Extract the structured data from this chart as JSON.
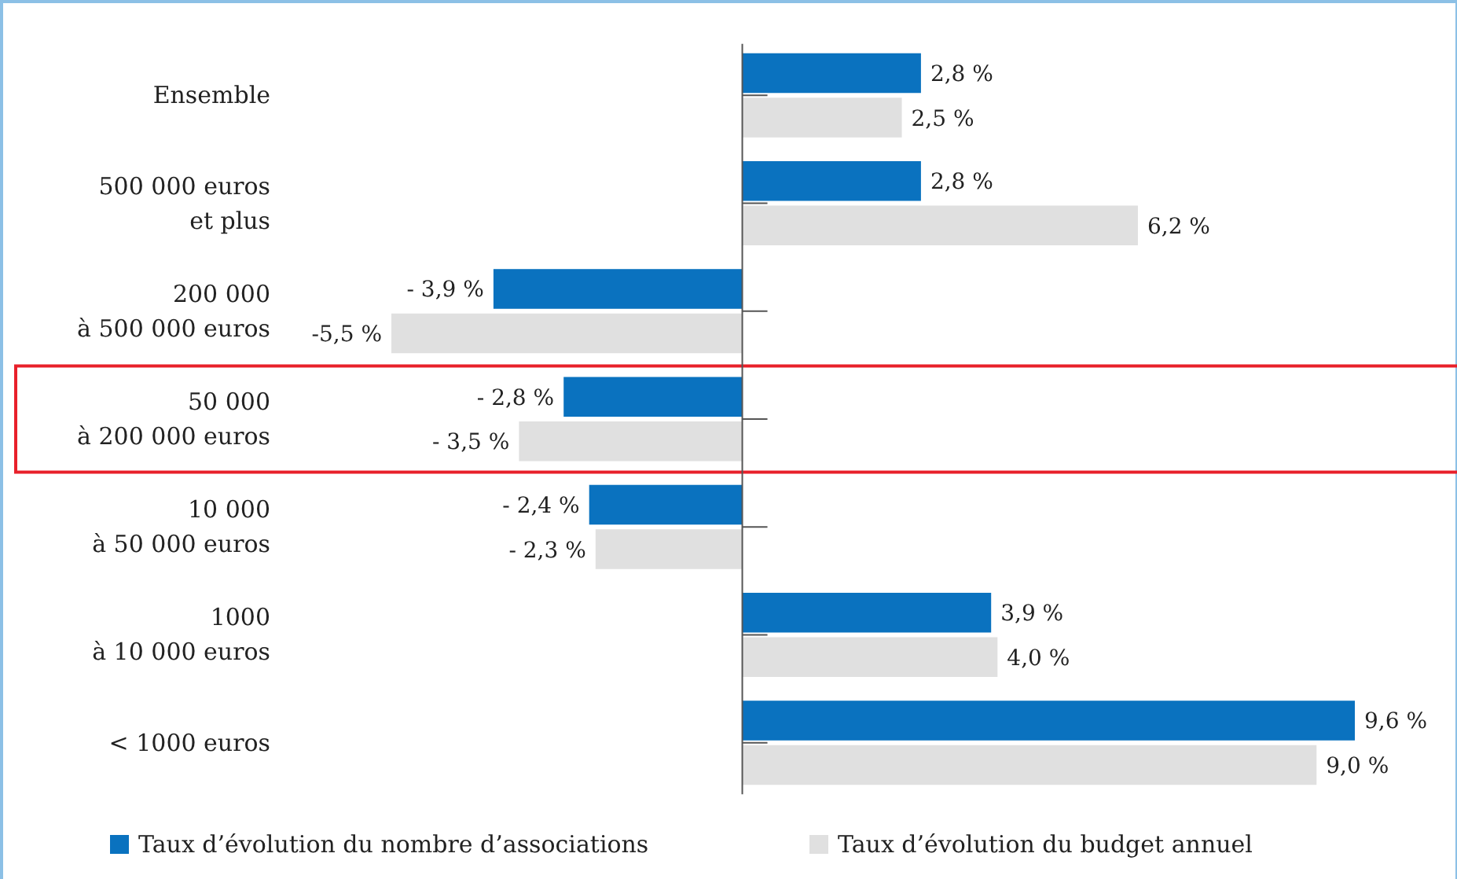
{
  "chart_data": {
    "type": "bar",
    "orientation": "horizontal",
    "categories": [
      "Ensemble",
      "500 000 euros\net plus",
      "200 000\nà 500 000 euros",
      "50 000\nà 200 000 euros",
      "10 000\nà 50 000 euros",
      "1000\nà 10 000 euros",
      "< 1000 euros"
    ],
    "series": [
      {
        "name": "Taux d’évolution du nombre d’associations",
        "color": "#0a72bf",
        "values": [
          2.8,
          2.8,
          -3.9,
          -2.8,
          -2.4,
          3.9,
          9.6
        ],
        "value_labels": [
          "2,8 %",
          "2,8 %",
          "- 3,9 %",
          "- 2,8 %",
          "- 2,4 %",
          "3,9 %",
          "9,6 %"
        ]
      },
      {
        "name": "Taux d’évolution du budget annuel",
        "color": "#e0e0e0",
        "values": [
          2.5,
          6.2,
          -5.5,
          -3.5,
          -2.3,
          4.0,
          9.0
        ],
        "value_labels": [
          "2,5 %",
          "6,2 %",
          "-5,5 %",
          "- 3,5 %",
          "- 2,3 %",
          "4,0 %",
          "9,0 %"
        ]
      }
    ],
    "legend": "bottom"
  }
}
